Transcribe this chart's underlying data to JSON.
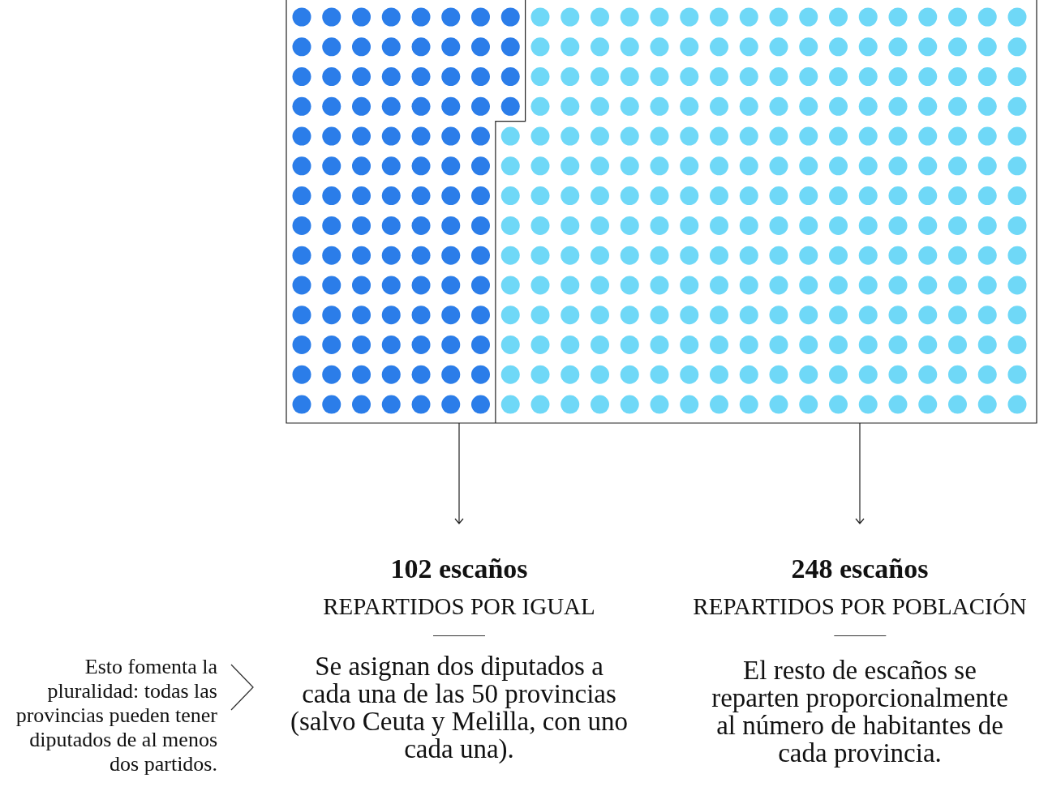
{
  "chart_data": {
    "type": "other",
    "categories": [
      "REPARTIDOS POR IGUAL",
      "REPARTIDOS POR POBLACIÓN"
    ],
    "values": [
      102,
      248
    ],
    "colors": [
      "#2b7de9",
      "#6fd8f7"
    ],
    "value_labels": [
      "102 escaños",
      "248 escaños"
    ],
    "annotations": [
      "Se asignan dos diputados a cada una de las 50 provincias (salvo Ceuta y Melilla, con uno cada una).",
      "El resto de escaños se reparten proporcionalmente al número de habitantes de cada provincia.",
      "Esto fomenta la pluralidad: todas las provincias pueden tener diputados de al menos dos partidos."
    ]
  }
}
